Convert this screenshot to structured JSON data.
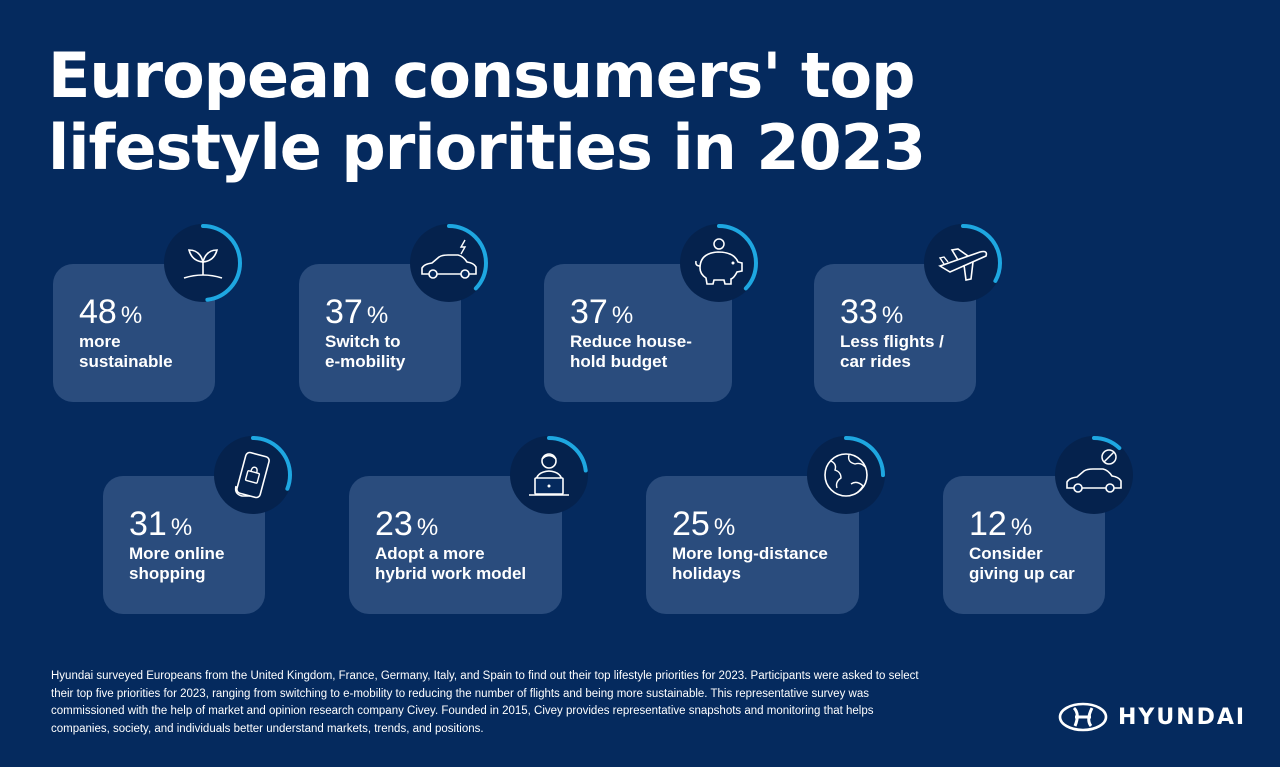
{
  "title": {
    "line1": "European consumers' top",
    "line2": "lifestyle priorities in 2023"
  },
  "colors": {
    "background": "#052a5e",
    "card": "#2a4c7d",
    "accent": "#1ea7e1",
    "track": "#05224d"
  },
  "priorities": [
    {
      "value": 48,
      "percent": "48",
      "unit": "%",
      "label_line1": "more",
      "label_line2": "sustainable",
      "icon": "plant-icon"
    },
    {
      "value": 37,
      "percent": "37",
      "unit": "%",
      "label_line1": "Switch to",
      "label_line2": "e-mobility",
      "icon": "electric-car-icon"
    },
    {
      "value": 37,
      "percent": "37",
      "unit": "%",
      "label_line1": "Reduce house-",
      "label_line2": "hold budget",
      "icon": "piggy-bank-icon"
    },
    {
      "value": 33,
      "percent": "33",
      "unit": "%",
      "label_line1": "Less flights /",
      "label_line2": "car rides",
      "icon": "airplane-icon"
    },
    {
      "value": 31,
      "percent": "31",
      "unit": "%",
      "label_line1": "More online",
      "label_line2": "shopping",
      "icon": "phone-shopping-icon"
    },
    {
      "value": 23,
      "percent": "23",
      "unit": "%",
      "label_line1": "Adopt a more",
      "label_line2": "hybrid work model",
      "icon": "laptop-worker-icon"
    },
    {
      "value": 25,
      "percent": "25",
      "unit": "%",
      "label_line1": "More long-distance",
      "label_line2": "holidays",
      "icon": "globe-icon"
    },
    {
      "value": 12,
      "percent": "12",
      "unit": "%",
      "label_line1": "Consider",
      "label_line2": "giving up car",
      "icon": "no-car-icon"
    }
  ],
  "footnote": "Hyundai surveyed Europeans from the United Kingdom, France, Germany, Italy, and Spain to find out their top lifestyle priorities for 2023. Participants were asked to select their top five priorities for 2023, ranging from switching to e-mobility to reducing the number of flights and being more sustainable. This representative survey was commissioned with the help of market and opinion research company Civey. Founded in 2015, Civey provides representative snapshots and monitoring that helps companies, society, and individuals better understand markets, trends, and positions.",
  "brand": {
    "name": "HYUNDAI",
    "icon": "hyundai-logo-icon"
  }
}
